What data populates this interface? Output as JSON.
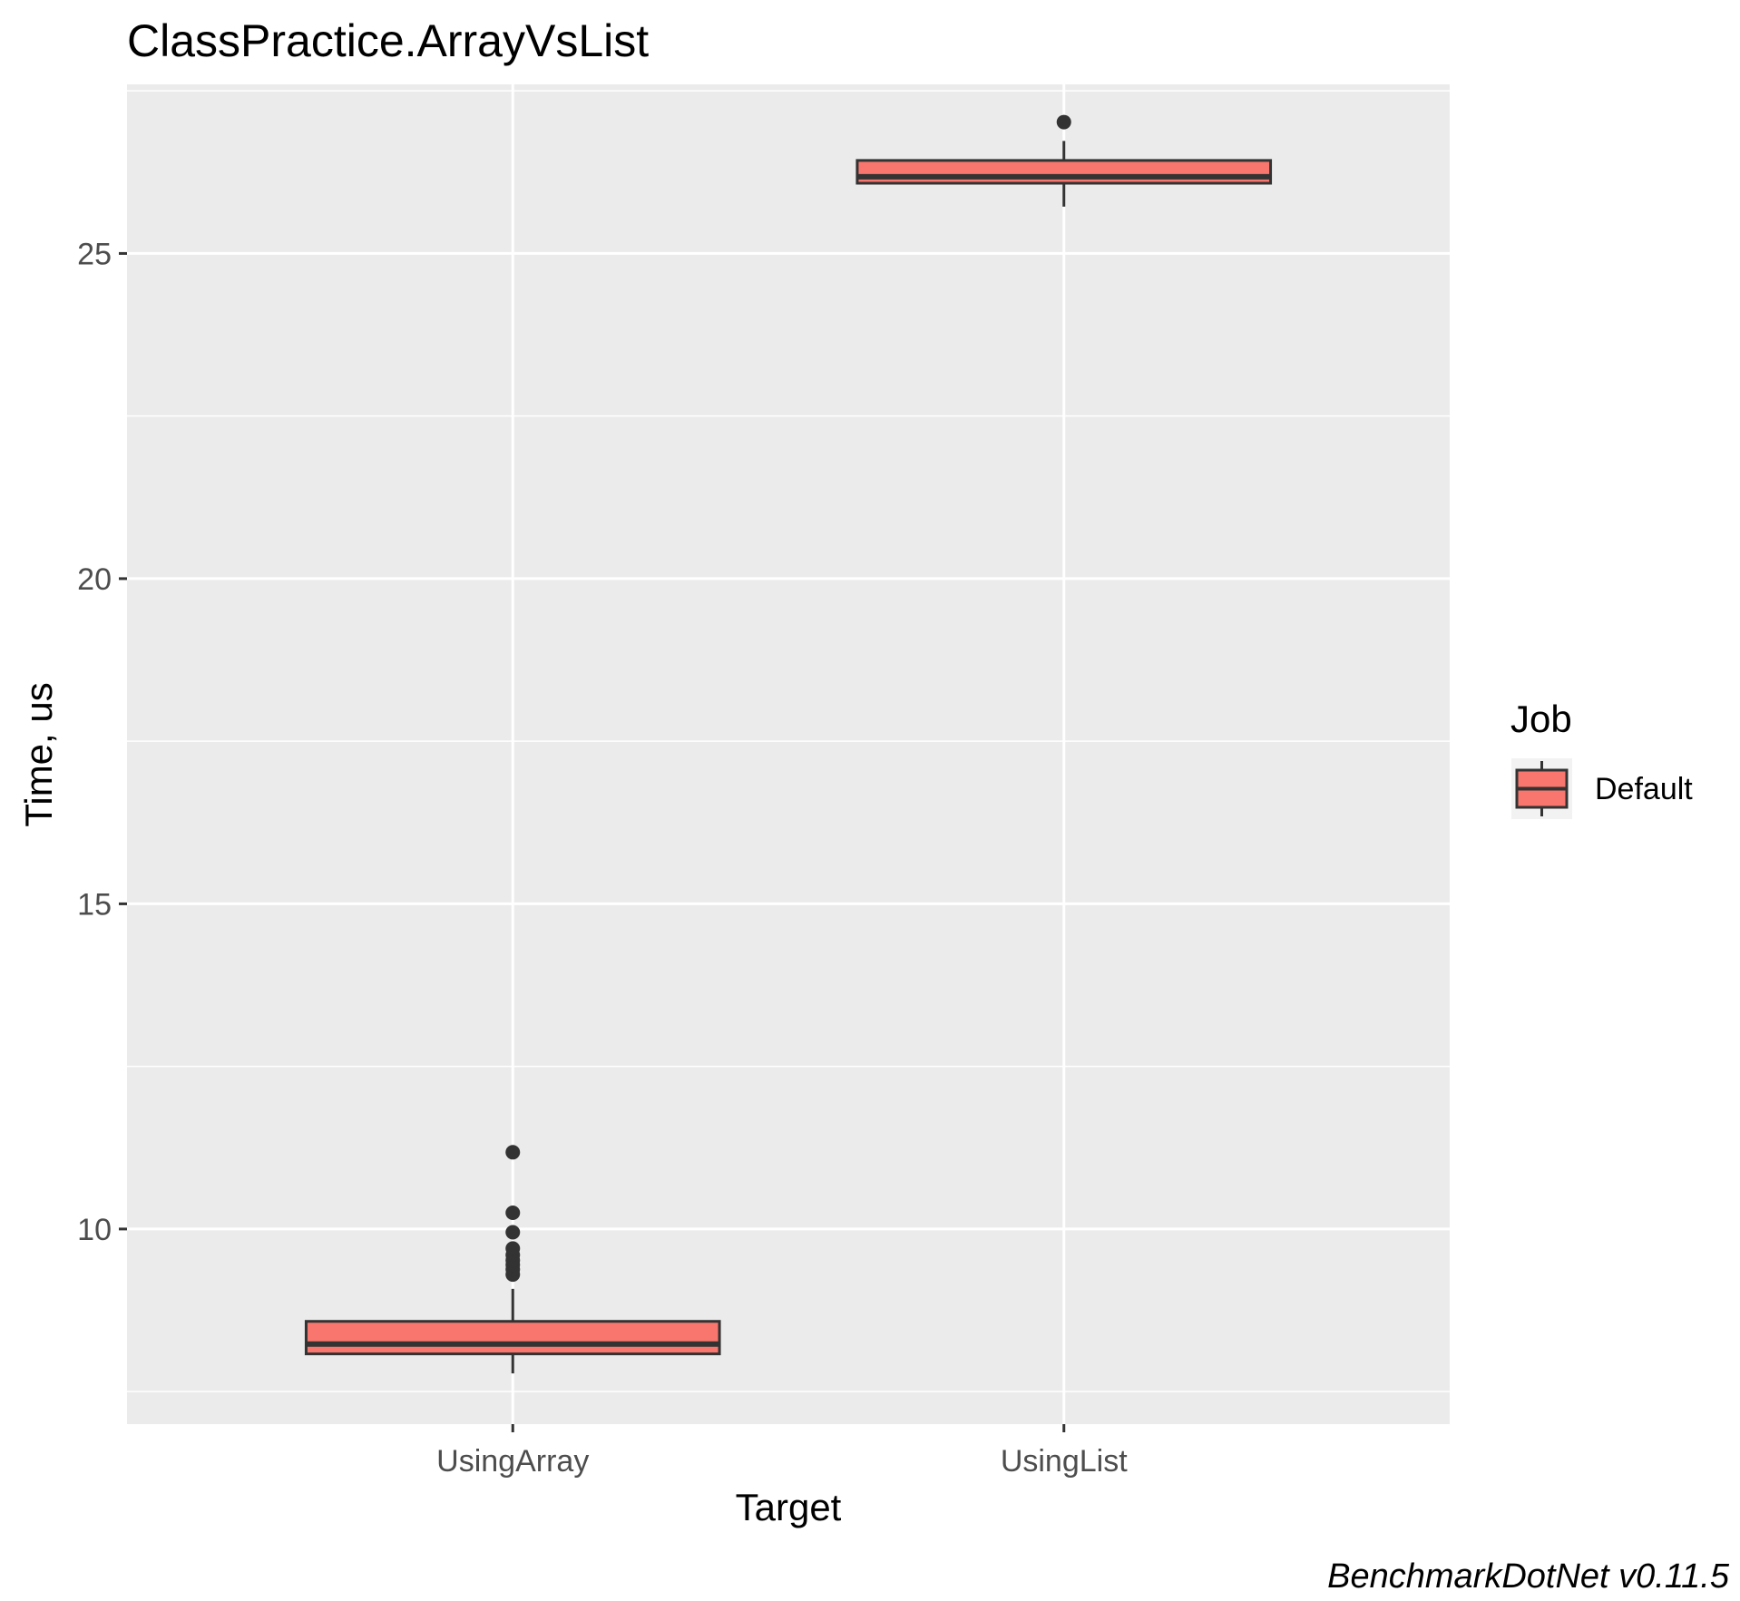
{
  "chart_data": {
    "type": "boxplot",
    "title": "ClassPractice.ArrayVsList",
    "xlabel": "Target",
    "ylabel": "Time, us",
    "categories": [
      "UsingArray",
      "UsingList"
    ],
    "ylim": [
      7.0,
      27.6
    ],
    "yticks": [
      10,
      15,
      20,
      25
    ],
    "grid": true,
    "series": [
      {
        "name": "Default",
        "color": "#F8766D",
        "boxes": [
          {
            "category": "UsingArray",
            "whisker_low": 7.78,
            "q1": 8.08,
            "median": 8.23,
            "q3": 8.58,
            "whisker_high": 9.08,
            "outliers": [
              9.3,
              9.38,
              9.45,
              9.52,
              9.6,
              9.7,
              9.95,
              10.25,
              11.18
            ]
          },
          {
            "category": "UsingList",
            "whisker_low": 25.72,
            "q1": 26.08,
            "median": 26.18,
            "q3": 26.43,
            "whisker_high": 26.73,
            "outliers": [
              27.02
            ]
          }
        ]
      }
    ],
    "legend": {
      "title": "Job",
      "position": "right",
      "entries": [
        "Default"
      ]
    },
    "caption": "BenchmarkDotNet v0.11.5"
  }
}
